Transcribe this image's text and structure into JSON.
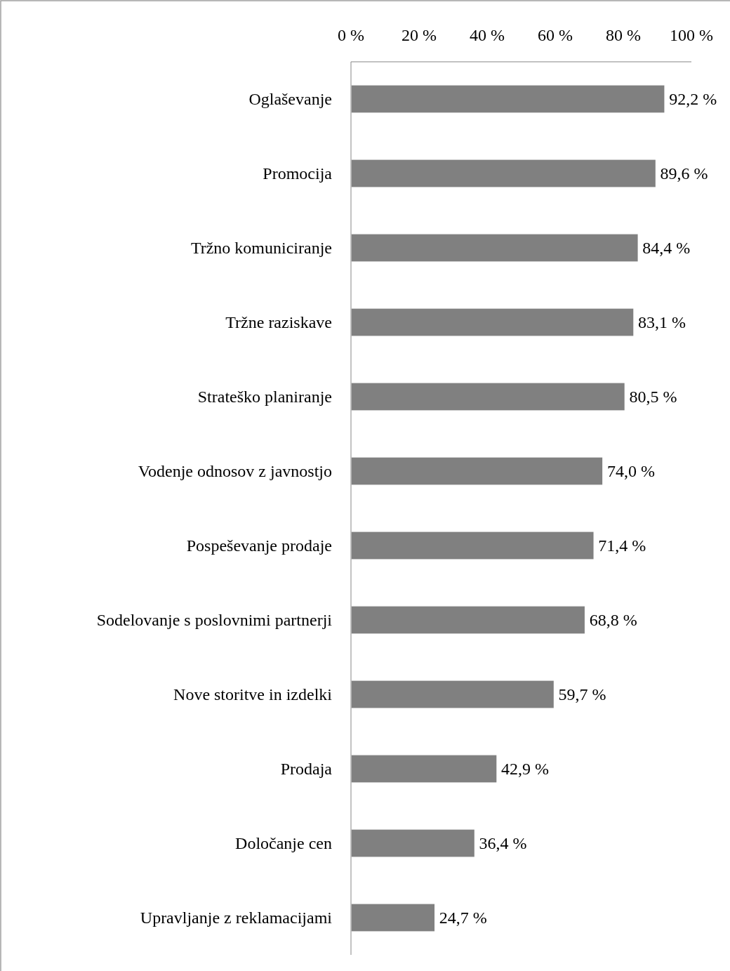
{
  "chart_data": {
    "type": "bar",
    "orientation": "horizontal",
    "categories": [
      "Oglaševanje",
      "Promocija",
      "Tržno komuniciranje",
      "Tržne raziskave",
      "Strateško planiranje",
      "Vodenje odnosov z javnostjo",
      "Pospeševanje prodaje",
      "Sodelovanje s poslovnimi partnerji",
      "Nove storitve in izdelki",
      "Prodaja",
      "Določanje cen",
      "Upravljanje z reklamacijami"
    ],
    "values": [
      92.2,
      89.6,
      84.4,
      83.1,
      80.5,
      74.0,
      71.4,
      68.8,
      59.7,
      42.9,
      36.4,
      24.7
    ],
    "value_labels": [
      "92,2 %",
      "89,6 %",
      "84,4 %",
      "83,1 %",
      "80,5 %",
      "74,0 %",
      "71,4 %",
      "68,8 %",
      "59,7 %",
      "42,9 %",
      "36,4 %",
      "24,7 %"
    ],
    "color": "#808080",
    "xlim": [
      0,
      100
    ],
    "xticks": [
      {
        "value": 0,
        "label": "0 %"
      },
      {
        "value": 20,
        "label": "20 %"
      },
      {
        "value": 40,
        "label": "40 %"
      },
      {
        "value": 60,
        "label": "60 %"
      },
      {
        "value": 80,
        "label": "80 %"
      },
      {
        "value": 100,
        "label": "100 %"
      }
    ],
    "grid": false
  }
}
